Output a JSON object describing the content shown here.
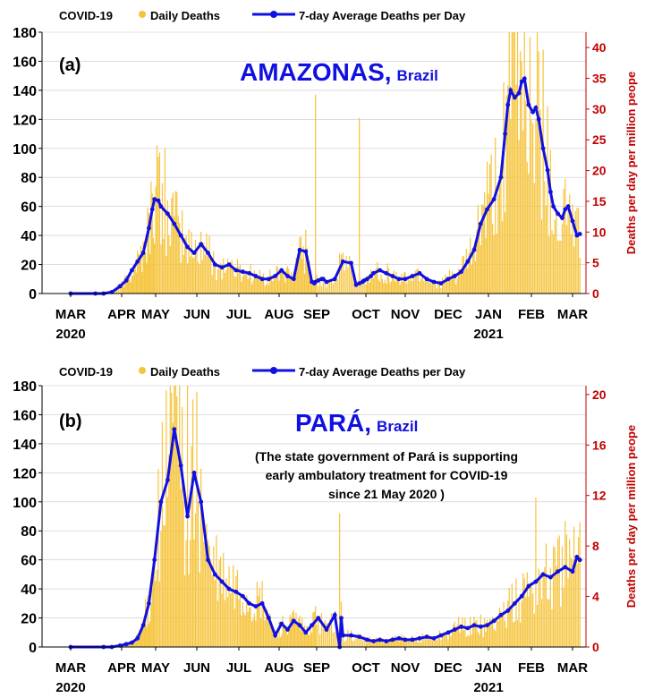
{
  "colors": {
    "daily": "#f5c43c",
    "average": "#1010e0",
    "right_axis": "#c00000",
    "axis": "#000000",
    "grid": "#c8c8c8"
  },
  "chart_data": [
    {
      "type": "bar",
      "panel_label": "(a)",
      "legend_prefix": "COVID-19",
      "legend": [
        "Daily Deaths",
        "7-day Average Deaths per Day"
      ],
      "legend_position": "top-left",
      "title_main": "AMAZONAS,",
      "title_sub": "Brazil",
      "note_lines": [],
      "months": [
        "MAR",
        "APR",
        "MAY",
        "JUN",
        "JUL",
        "AUG",
        "SEP",
        "OCT",
        "NOV",
        "DEC",
        "JAN",
        "FEB",
        "MAR"
      ],
      "year_labels": [
        {
          "month_index": 0,
          "text": "2020"
        },
        {
          "month_index": 10,
          "text": "2021"
        }
      ],
      "ylim": [
        0,
        180
      ],
      "yticks": [
        0,
        20,
        40,
        60,
        80,
        100,
        120,
        140,
        160,
        180
      ],
      "y2lim": [
        0,
        42.5
      ],
      "y2ticks": [
        0,
        5,
        10,
        15,
        20,
        25,
        30,
        35,
        40
      ],
      "y2label": "Deaths per day per million peope",
      "grid": true,
      "series_average": {
        "name": "7-day Average Deaths per Day",
        "x_days": [
          0,
          15,
          20,
          25,
          30,
          35,
          40,
          45,
          50,
          55,
          58,
          60,
          63,
          65,
          70,
          75,
          80,
          85,
          90,
          95,
          100,
          105,
          110,
          115,
          120,
          125,
          130,
          135,
          140,
          145,
          150,
          155,
          160,
          165,
          170,
          175,
          180,
          182,
          183,
          185,
          187,
          188,
          190,
          195,
          200,
          205,
          208,
          210,
          212,
          213,
          215,
          218,
          220,
          225,
          230,
          235,
          240,
          245,
          250,
          255,
          260,
          265,
          270,
          275,
          280,
          285,
          290,
          295,
          300,
          305,
          310,
          315,
          318,
          320,
          322,
          325,
          328,
          330,
          332,
          335,
          338,
          340,
          342,
          345,
          348,
          350,
          352,
          355,
          358,
          360,
          362,
          365,
          368,
          370
        ],
        "values": [
          0,
          0,
          0,
          1,
          5,
          9,
          16,
          22,
          28,
          45,
          58,
          65,
          64,
          60,
          55,
          48,
          40,
          32,
          28,
          34,
          28,
          20,
          18,
          20,
          16,
          15,
          14,
          12,
          10,
          10,
          12,
          16,
          12,
          10,
          30,
          29,
          8,
          7,
          8,
          9,
          10,
          10,
          8,
          10,
          22,
          21,
          6,
          7,
          8,
          9,
          10,
          12,
          14,
          16,
          14,
          12,
          10,
          10,
          12,
          14,
          10,
          8,
          7,
          10,
          12,
          15,
          22,
          30,
          48,
          58,
          65,
          80,
          110,
          130,
          140,
          135,
          138,
          146,
          148,
          130,
          125,
          128,
          120,
          100,
          85,
          70,
          60,
          55,
          52,
          58,
          60,
          50,
          40,
          41
        ],
        "start_date": "2020-03-01"
      },
      "series_daily_peaks": [
        {
          "day": 62,
          "value": 102
        },
        {
          "day": 68,
          "value": 100
        },
        {
          "day": 183,
          "value": 137
        },
        {
          "day": 210,
          "value": 121
        },
        {
          "day": 325,
          "value": 180
        },
        {
          "day": 345,
          "value": 168
        }
      ]
    },
    {
      "type": "bar",
      "panel_label": "(b)",
      "legend_prefix": "COVID-19",
      "legend": [
        "Daily Deaths",
        "7-day Average Deaths per Day"
      ],
      "legend_position": "top-left",
      "title_main": "PARÁ,",
      "title_sub": "Brazil",
      "note_lines": [
        "(The state government of Pará is supporting",
        "early ambulatory treatment for COVID-19",
        "since 21 May 2020 )"
      ],
      "months": [
        "MAR",
        "APR",
        "MAY",
        "JUN",
        "JUL",
        "AUG",
        "SEP",
        "OCT",
        "NOV",
        "DEC",
        "JAN",
        "FEB",
        "MAR"
      ],
      "year_labels": [
        {
          "month_index": 0,
          "text": "2020"
        },
        {
          "month_index": 10,
          "text": "2021"
        }
      ],
      "ylim": [
        0,
        180
      ],
      "yticks": [
        0,
        20,
        40,
        60,
        80,
        100,
        120,
        140,
        160,
        180
      ],
      "y2lim": [
        0,
        20.7
      ],
      "y2ticks": [
        0,
        4,
        8,
        12,
        16,
        20
      ],
      "y2label": "Deaths per day per million peope",
      "grid": true,
      "series_average": {
        "name": "7-day Average Deaths per Day",
        "x_days": [
          0,
          20,
          25,
          30,
          35,
          40,
          45,
          50,
          55,
          60,
          65,
          70,
          75,
          80,
          85,
          90,
          95,
          100,
          105,
          110,
          115,
          120,
          125,
          130,
          135,
          140,
          145,
          150,
          155,
          160,
          165,
          170,
          175,
          180,
          185,
          190,
          195,
          198,
          199,
          200,
          205,
          210,
          215,
          220,
          225,
          230,
          235,
          240,
          245,
          250,
          255,
          260,
          265,
          270,
          275,
          280,
          285,
          290,
          295,
          300,
          305,
          310,
          315,
          320,
          325,
          330,
          335,
          340,
          345,
          350,
          355,
          360,
          365,
          368,
          370
        ],
        "values": [
          0,
          0,
          0,
          1,
          2,
          3,
          6,
          15,
          30,
          60,
          100,
          115,
          150,
          125,
          90,
          120,
          100,
          60,
          50,
          45,
          40,
          38,
          35,
          30,
          28,
          30,
          20,
          8,
          16,
          12,
          18,
          15,
          10,
          15,
          20,
          12,
          22,
          0,
          20,
          8,
          8,
          7,
          5,
          4,
          5,
          4,
          5,
          6,
          5,
          5,
          6,
          7,
          6,
          8,
          10,
          12,
          14,
          13,
          15,
          14,
          15,
          18,
          22,
          25,
          30,
          35,
          42,
          45,
          50,
          48,
          52,
          55,
          52,
          62,
          60
        ],
        "start_date": "2020-03-01"
      },
      "series_daily_peaks": [
        {
          "day": 72,
          "value": 180
        },
        {
          "day": 85,
          "value": 180
        },
        {
          "day": 198,
          "value": 92
        },
        {
          "day": 340,
          "value": 103
        },
        {
          "day": 360,
          "value": 87
        }
      ]
    }
  ]
}
